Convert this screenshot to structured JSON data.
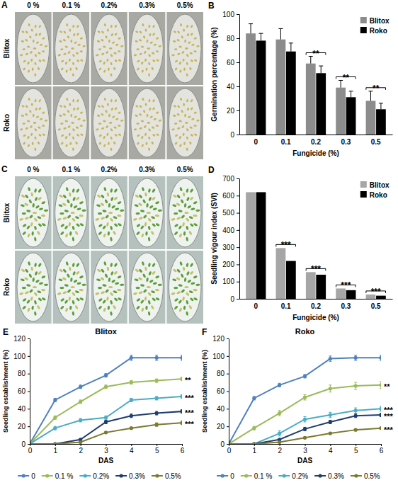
{
  "photo_panels": [
    {
      "label": "A",
      "column_labels": [
        "0 %",
        "0.1 %",
        "0.2%",
        "0.3%",
        "0.5%"
      ],
      "row_labels": [
        "Blitox",
        "Roko"
      ]
    },
    {
      "label": "C",
      "column_labels": [
        "0 %",
        "0.1 %",
        "0.2%",
        "0.3%",
        "0.5%"
      ],
      "row_labels": [
        "Blitox",
        "Roko"
      ]
    }
  ],
  "chart_data": [
    {
      "label": "B",
      "type": "bar",
      "categories": [
        "0",
        "0.1",
        "0.2",
        "0.3",
        "0.5"
      ],
      "x_label": "Fungicide (%)",
      "y_label": "Germination percentage (%)",
      "ylim": [
        0,
        100
      ],
      "yticks": [
        0,
        20,
        40,
        60,
        80,
        100
      ],
      "legend": "top-right",
      "series": [
        {
          "name": "Blitox",
          "color": "#8c8c8c",
          "values": [
            84,
            79,
            59,
            39,
            28
          ],
          "errors": [
            8,
            9,
            6,
            6,
            8
          ]
        },
        {
          "name": "Roko",
          "color": "#000000",
          "values": [
            78,
            69,
            51,
            31,
            21
          ],
          "errors": [
            6,
            7,
            6,
            5,
            5
          ]
        }
      ],
      "annotations": [
        {
          "category": "0.2",
          "text": "**"
        },
        {
          "category": "0.3",
          "text": "**"
        },
        {
          "category": "0.5",
          "text": "**"
        }
      ]
    },
    {
      "label": "D",
      "type": "bar",
      "categories": [
        "0",
        "0.1",
        "0.2",
        "0.3",
        "0.5"
      ],
      "x_label": "Fungicide (%)",
      "y_label": "Seedling vigour index (SVI)",
      "ylim": [
        0,
        700
      ],
      "yticks": [
        0,
        100,
        200,
        300,
        400,
        500,
        600,
        700
      ],
      "legend": "top-right",
      "series": [
        {
          "name": "Blitox",
          "color": "#a6a6a6",
          "values": [
            620,
            295,
            155,
            60,
            25
          ]
        },
        {
          "name": "Roko",
          "color": "#000000",
          "values": [
            620,
            220,
            140,
            50,
            18
          ]
        }
      ],
      "annotations": [
        {
          "category": "0.1",
          "text": "***"
        },
        {
          "category": "0.2",
          "text": "***"
        },
        {
          "category": "0.3",
          "text": "***"
        },
        {
          "category": "0.5",
          "text": "***"
        }
      ]
    },
    {
      "label": "E",
      "type": "line",
      "title": "Blitox",
      "x": [
        0,
        1,
        2,
        3,
        4,
        5,
        6
      ],
      "xlim": [
        0,
        6
      ],
      "xticks": [
        0,
        1,
        2,
        3,
        4,
        5,
        6
      ],
      "ylim": [
        0,
        120
      ],
      "yticks": [
        0,
        20,
        40,
        60,
        80,
        100,
        120
      ],
      "x_label": "DAS",
      "y_label": "Seedling establishment (%)",
      "legend": "bottom",
      "marker": "circle",
      "series": [
        {
          "name": "0",
          "color": "#4f81bd",
          "values": [
            0,
            50,
            65,
            78,
            98,
            98,
            98
          ],
          "errors": [
            0,
            2,
            2,
            2,
            3,
            3,
            3
          ]
        },
        {
          "name": "0.1 %",
          "color": "#9bbb59",
          "values": [
            0,
            30,
            48,
            65,
            70,
            72,
            74
          ],
          "errors": [
            0,
            2,
            2,
            2,
            2,
            2,
            2
          ]
        },
        {
          "name": "0.2%",
          "color": "#4bacc6",
          "values": [
            0,
            18,
            27,
            30,
            50,
            52,
            54
          ],
          "errors": [
            0,
            2,
            2,
            2,
            2,
            2,
            2
          ]
        },
        {
          "name": "0.3%",
          "color": "#1f3d6e",
          "values": [
            0,
            0,
            5,
            25,
            32,
            35,
            37
          ],
          "errors": [
            0,
            0,
            1,
            2,
            2,
            2,
            2
          ]
        },
        {
          "name": "0.5%",
          "color": "#7a7a30",
          "values": [
            0,
            0,
            2,
            13,
            18,
            22,
            24
          ],
          "errors": [
            0,
            0,
            1,
            1,
            1,
            2,
            2
          ]
        }
      ],
      "annotations": [
        {
          "series": "0.1 %",
          "text": "**"
        },
        {
          "series": "0.2%",
          "text": "***"
        },
        {
          "series": "0.3%",
          "text": "***"
        },
        {
          "series": "0.5%",
          "text": "***"
        }
      ]
    },
    {
      "label": "F",
      "type": "line",
      "title": "Roko",
      "x": [
        0,
        1,
        2,
        3,
        4,
        5,
        6
      ],
      "xlim": [
        0,
        6
      ],
      "xticks": [
        0,
        1,
        2,
        3,
        4,
        5,
        6
      ],
      "ylim": [
        0,
        120
      ],
      "yticks": [
        0,
        20,
        40,
        60,
        80,
        100,
        120
      ],
      "x_label": "DAS",
      "y_label": "Seedling establishment (%)",
      "legend": "bottom",
      "marker": "circle",
      "series": [
        {
          "name": "0",
          "color": "#4f81bd",
          "values": [
            0,
            52,
            67,
            77,
            97,
            98,
            98
          ],
          "errors": [
            0,
            2,
            2,
            2,
            3,
            3,
            3
          ]
        },
        {
          "name": "0.1 %",
          "color": "#9bbb59",
          "values": [
            0,
            18,
            35,
            53,
            63,
            66,
            67
          ],
          "errors": [
            0,
            2,
            3,
            3,
            4,
            4,
            4
          ]
        },
        {
          "name": "0.2%",
          "color": "#4bacc6",
          "values": [
            0,
            0,
            12,
            28,
            33,
            38,
            40
          ],
          "errors": [
            0,
            0,
            3,
            3,
            3,
            3,
            3
          ]
        },
        {
          "name": "0.3%",
          "color": "#1f3d6e",
          "values": [
            0,
            0,
            5,
            17,
            25,
            32,
            33
          ],
          "errors": [
            0,
            0,
            1,
            2,
            2,
            2,
            2
          ]
        },
        {
          "name": "0.5%",
          "color": "#7a7a30",
          "values": [
            0,
            0,
            2,
            7,
            12,
            16,
            18
          ],
          "errors": [
            0,
            0,
            1,
            1,
            1,
            1,
            1
          ]
        }
      ],
      "annotations": [
        {
          "series": "0.1 %",
          "text": "**"
        },
        {
          "series": "0.2%",
          "text": "***"
        },
        {
          "series": "0.3%",
          "text": "***"
        },
        {
          "series": "0.5%",
          "text": "***"
        }
      ]
    }
  ]
}
